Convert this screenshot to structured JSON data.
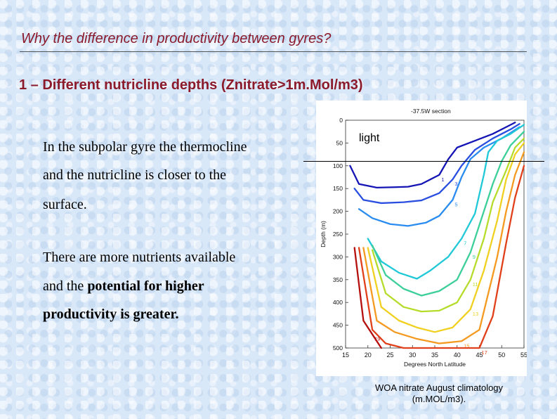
{
  "slide": {
    "title": "Why the difference in productivity between gyres?",
    "subtitle": "1 – Different nutricline depths (Znitrate>1m.Mol/m3)",
    "body": {
      "line1": "In the subpolar gyre the thermocline",
      "line2": "and the nutricline is closer to the",
      "line3": "surface.",
      "line4": "There are more nutrients available",
      "line5_plain": "and the ",
      "line5_bold": "potential for higher",
      "line6": "productivity is greater."
    },
    "figure_label": "light",
    "caption_line1": "WOA nitrate August climatology",
    "caption_line2": "(m.MOL/m3)."
  },
  "chart_data": {
    "type": "contour",
    "title": "-37.5W section",
    "xlabel": "Degrees North Latitude",
    "ylabel": "Depth (m)",
    "xlim": [
      15,
      55
    ],
    "ylim": [
      0,
      500
    ],
    "y_inverted": true,
    "x_ticks": [
      15,
      20,
      25,
      30,
      35,
      40,
      45,
      50,
      55
    ],
    "y_ticks": [
      0,
      50,
      100,
      150,
      200,
      250,
      300,
      350,
      400,
      450,
      500
    ],
    "colors": {
      "1": "#1515b5",
      "3": "#2a4fe0",
      "5": "#2a8cf0",
      "7": "#20c8d8",
      "9": "#3ccf9a",
      "11": "#b5dc2a",
      "13": "#f0d020",
      "15": "#f59a20",
      "17": "#e0401a",
      "19": "#b5100e"
    },
    "contours": [
      {
        "level": "1",
        "points": [
          [
            16,
            100
          ],
          [
            18,
            140
          ],
          [
            22,
            148
          ],
          [
            26,
            147
          ],
          [
            29,
            146
          ],
          [
            32,
            140
          ],
          [
            36,
            120
          ],
          [
            38,
            86
          ],
          [
            40,
            60
          ],
          [
            44,
            45
          ],
          [
            48,
            30
          ],
          [
            51,
            15
          ],
          [
            53,
            5
          ]
        ]
      },
      {
        "level": "3",
        "points": [
          [
            17,
            150
          ],
          [
            19,
            175
          ],
          [
            23,
            182
          ],
          [
            28,
            180
          ],
          [
            32,
            176
          ],
          [
            36,
            160
          ],
          [
            39,
            130
          ],
          [
            41,
            100
          ],
          [
            44,
            65
          ],
          [
            48,
            40
          ],
          [
            52,
            20
          ],
          [
            54,
            8
          ]
        ]
      },
      {
        "level": "5",
        "points": [
          [
            18,
            195
          ],
          [
            21,
            215
          ],
          [
            25,
            228
          ],
          [
            29,
            232
          ],
          [
            33,
            225
          ],
          [
            36,
            210
          ],
          [
            39,
            175
          ],
          [
            41,
            125
          ],
          [
            43,
            85
          ],
          [
            46,
            60
          ],
          [
            50,
            40
          ],
          [
            54,
            15
          ]
        ]
      },
      {
        "level": "7",
        "points": [
          [
            20,
            260
          ],
          [
            23,
            310
          ],
          [
            27,
            335
          ],
          [
            31,
            348
          ],
          [
            34,
            330
          ],
          [
            38,
            300
          ],
          [
            41,
            260
          ],
          [
            44,
            205
          ],
          [
            46,
            120
          ],
          [
            47,
            70
          ],
          [
            49,
            45
          ],
          [
            52,
            30
          ],
          [
            55,
            10
          ]
        ]
      },
      {
        "level": "9",
        "points": [
          [
            21,
            275
          ],
          [
            24,
            340
          ],
          [
            28,
            370
          ],
          [
            32,
            385
          ],
          [
            36,
            375
          ],
          [
            40,
            350
          ],
          [
            43,
            290
          ],
          [
            46,
            200
          ],
          [
            48,
            140
          ],
          [
            50,
            90
          ],
          [
            52,
            55
          ],
          [
            55,
            25
          ]
        ]
      },
      {
        "level": "11",
        "points": [
          [
            21,
            285
          ],
          [
            24,
            380
          ],
          [
            28,
            410
          ],
          [
            32,
            420
          ],
          [
            36,
            418
          ],
          [
            40,
            400
          ],
          [
            43,
            350
          ],
          [
            46,
            260
          ],
          [
            48,
            180
          ],
          [
            51,
            110
          ],
          [
            53,
            60
          ],
          [
            55,
            40
          ]
        ]
      },
      {
        "level": "13",
        "points": [
          [
            20,
            280
          ],
          [
            23,
            410
          ],
          [
            27,
            440
          ],
          [
            31,
            455
          ],
          [
            35,
            465
          ],
          [
            39,
            455
          ],
          [
            43,
            415
          ],
          [
            46,
            330
          ],
          [
            49,
            220
          ],
          [
            51,
            130
          ],
          [
            53,
            75
          ],
          [
            55,
            50
          ]
        ]
      },
      {
        "level": "15",
        "points": [
          [
            19,
            280
          ],
          [
            22,
            440
          ],
          [
            26,
            465
          ],
          [
            31,
            480
          ],
          [
            36,
            490
          ],
          [
            41,
            485
          ],
          [
            45,
            460
          ],
          [
            49,
            300
          ],
          [
            51,
            200
          ],
          [
            53,
            120
          ],
          [
            55,
            70
          ]
        ]
      },
      {
        "level": "17",
        "points": [
          [
            18,
            280
          ],
          [
            21,
            460
          ],
          [
            24,
            490
          ],
          [
            28,
            500
          ],
          [
            45,
            500
          ],
          [
            48,
            430
          ],
          [
            51,
            270
          ],
          [
            53,
            170
          ],
          [
            55,
            100
          ]
        ]
      },
      {
        "level": "19",
        "points": [
          [
            17,
            280
          ],
          [
            19,
            440
          ],
          [
            21,
            470
          ],
          [
            23,
            500
          ]
        ]
      }
    ],
    "light_depth": 92
  }
}
